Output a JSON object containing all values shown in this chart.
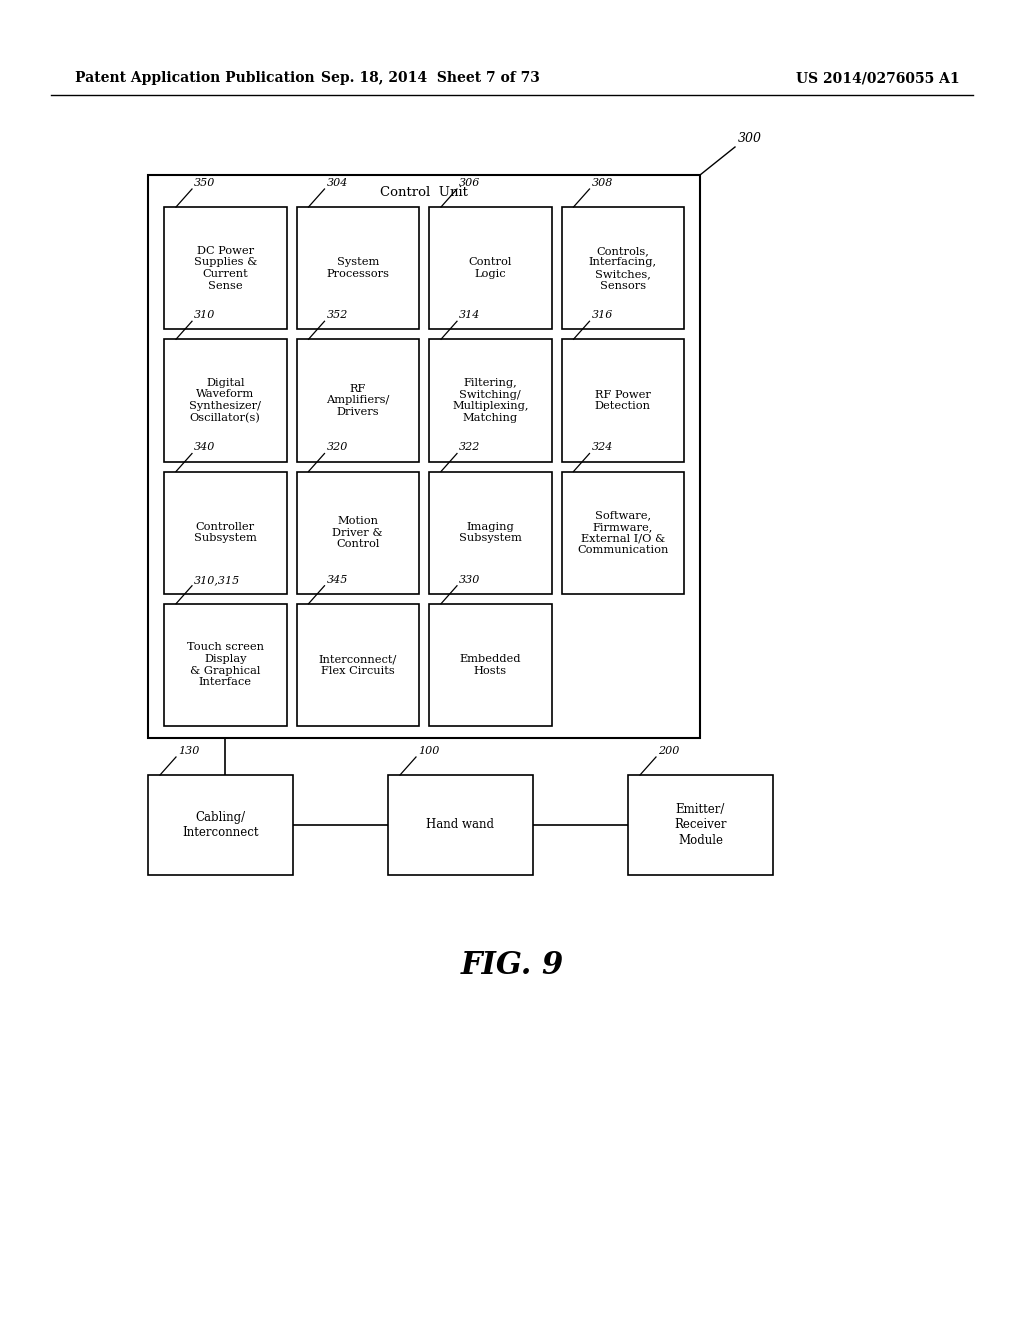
{
  "header_left": "Patent Application Publication",
  "header_mid": "Sep. 18, 2014  Sheet 7 of 73",
  "header_right": "US 2014/0276055 A1",
  "fig_label": "FIG. 9",
  "outer_label": "300",
  "control_unit_label": "Control  Unit",
  "rows": [
    {
      "boxes": [
        {
          "label": "DC Power\nSupplies &\nCurrent\nSense",
          "ref": "350",
          "col": 0
        },
        {
          "label": "System\nProcessors",
          "ref": "304",
          "col": 1
        },
        {
          "label": "Control\nLogic",
          "ref": "306",
          "col": 2
        },
        {
          "label": "Controls,\nInterfacing,\nSwitches,\nSensors",
          "ref": "308",
          "col": 3
        }
      ]
    },
    {
      "boxes": [
        {
          "label": "Digital\nWaveform\nSynthesizer/\nOscillator(s)",
          "ref": "310",
          "col": 0
        },
        {
          "label": "RF\nAmplifiers/\nDrivers",
          "ref": "352",
          "col": 1
        },
        {
          "label": "Filtering,\nSwitching/\nMultiplexing,\nMatching",
          "ref": "314",
          "col": 2
        },
        {
          "label": "RF Power\nDetection",
          "ref": "316",
          "col": 3
        }
      ]
    },
    {
      "boxes": [
        {
          "label": "Controller\nSubsystem",
          "ref": "340",
          "col": 0
        },
        {
          "label": "Motion\nDriver &\nControl",
          "ref": "320",
          "col": 1
        },
        {
          "label": "Imaging\nSubsystem",
          "ref": "322",
          "col": 2
        },
        {
          "label": "Software,\nFirmware,\nExternal I/O &\nCommunication",
          "ref": "324",
          "col": 3
        }
      ]
    },
    {
      "boxes": [
        {
          "label": "Touch screen\nDisplay\n& Graphical\nInterface",
          "ref": "310,315",
          "col": 0
        },
        {
          "label": "Interconnect/\nFlex Circuits",
          "ref": "345",
          "col": 1
        },
        {
          "label": "Embedded\nHosts",
          "ref": "330",
          "col": 2
        }
      ]
    }
  ],
  "bottom_boxes": [
    {
      "label": "Cabling/\nInterconnect",
      "ref": "130"
    },
    {
      "label": "Hand wand",
      "ref": "100"
    },
    {
      "label": "Emitter/\nReceiver\nModule",
      "ref": "200"
    }
  ]
}
